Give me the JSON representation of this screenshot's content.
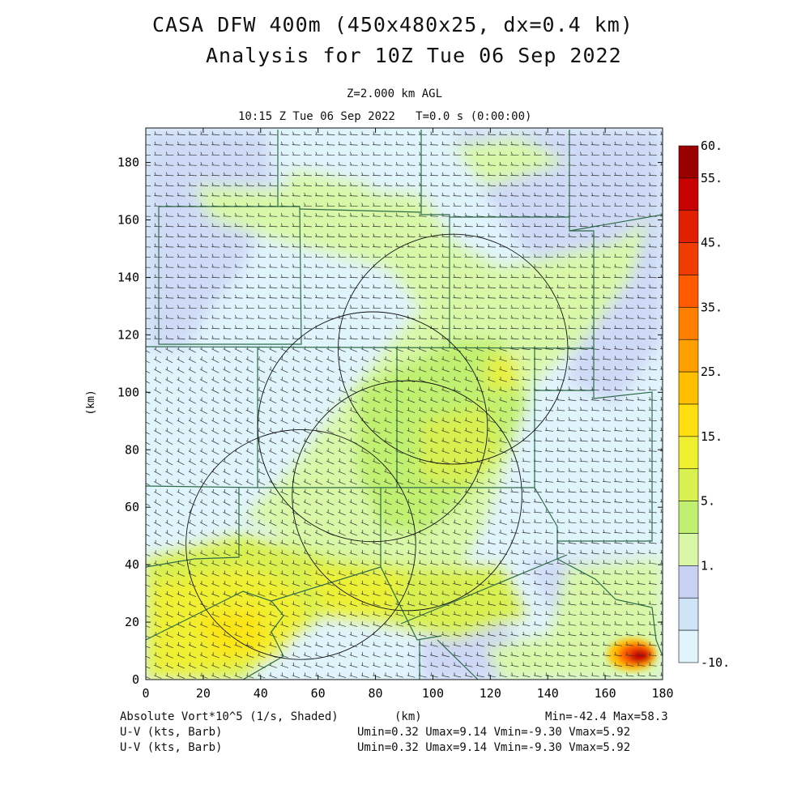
{
  "title_line1": "CASA DFW 400m (450x480x25, dx=0.4 km)",
  "title_line2": "Analysis for 10Z Tue 06 Sep 2022",
  "level_label": "Z=2.000 km AGL",
  "time_label": "10:15 Z Tue 06 Sep 2022   T=0.0 s (0:00:00)",
  "chart_data": {
    "type": "heatmap",
    "xlabel": "(km)",
    "ylabel": "(km)",
    "xlim": [
      0,
      180
    ],
    "ylim": [
      0,
      192
    ],
    "x_ticks": [
      "0",
      "20",
      "40",
      "60",
      "80",
      "100",
      "120",
      "140",
      "160",
      "180"
    ],
    "y_ticks": [
      "0",
      "20",
      "40",
      "60",
      "80",
      "100",
      "120",
      "140",
      "160",
      "180"
    ],
    "field": "Absolute Vort*10^5 (1/s, Shaded)",
    "min": -42.4,
    "max": 58.3,
    "colorbar": {
      "labels": [
        "60.",
        "55.",
        "45.",
        "35.",
        "25.",
        "15.",
        "5.",
        "1.",
        "-10."
      ],
      "colors": [
        "#9b0000",
        "#c80000",
        "#e02000",
        "#f03c00",
        "#ff5a00",
        "#ff7f00",
        "#ff9f00",
        "#ffbf00",
        "#ffdf10",
        "#f0f030",
        "#d8f050",
        "#c0f070",
        "#d8f8a8",
        "#c8d0f4",
        "#d0e4f8",
        "#e0f4fc"
      ]
    },
    "radar_rings": [
      {
        "cx": 54,
        "cy": 47,
        "r": 40
      },
      {
        "cx": 79,
        "cy": 88,
        "r": 40
      },
      {
        "cx": 107,
        "cy": 115,
        "r": 40
      },
      {
        "cx": 91,
        "cy": 64,
        "r": 40
      }
    ],
    "wind_barbs": "U-V (kts, Barb)"
  },
  "footer": {
    "left1": "Absolute Vort*10^5 (1/s, Shaded)",
    "center": "(km)",
    "right1": "Min=-42.4 Max=58.3",
    "left2": "U-V (kts, Barb)",
    "right2": "Umin=0.32 Umax=9.14 Vmin=-9.30 Vmax=5.92",
    "left3": "U-V (kts, Barb)",
    "right3": "Umin=0.32 Umax=9.14 Vmin=-9.30 Vmax=5.92"
  }
}
